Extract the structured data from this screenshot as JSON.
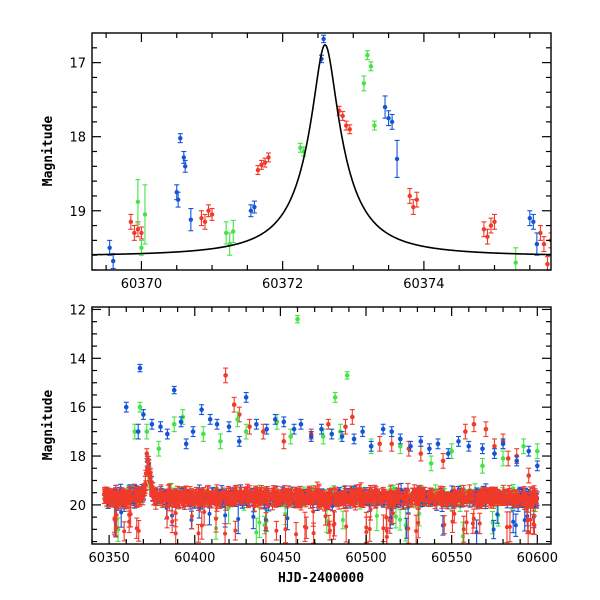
{
  "colors": {
    "red": "#f03a2a",
    "green": "#44e444",
    "blue": "#1454d8",
    "model": "#000000"
  },
  "chart_data": [
    {
      "type": "scatter",
      "xlabel": "",
      "ylabel": "Magnitude",
      "xlim": [
        60369.3,
        60375.8
      ],
      "ylim": [
        19.8,
        16.6
      ],
      "y_inverted": true,
      "xticks_labeled": [
        "60370",
        "60372",
        "60374"
      ],
      "yticks_labeled": [
        "17",
        "18",
        "19"
      ],
      "model_curve": {
        "peak_x": 60372.6,
        "peak_mag": 16.76,
        "baseline_mag": 19.62,
        "timescale_days": 0.8
      },
      "series": [
        {
          "color": "red",
          "points": [
            [
              60369.85,
              19.15,
              0.1
            ],
            [
              60369.9,
              19.3,
              0.1
            ],
            [
              60369.95,
              19.25,
              0.1
            ],
            [
              60370.0,
              19.3,
              0.08
            ],
            [
              60370.85,
              19.1,
              0.1
            ],
            [
              60370.9,
              19.15,
              0.1
            ],
            [
              60370.95,
              19.0,
              0.08
            ],
            [
              60371.0,
              19.05,
              0.08
            ],
            [
              60371.65,
              18.45,
              0.06
            ],
            [
              60371.7,
              18.38,
              0.06
            ],
            [
              60371.75,
              18.35,
              0.06
            ],
            [
              60371.8,
              18.28,
              0.06
            ],
            [
              60372.8,
              17.65,
              0.06
            ],
            [
              60372.85,
              17.72,
              0.06
            ],
            [
              60372.9,
              17.85,
              0.06
            ],
            [
              60372.95,
              17.9,
              0.06
            ],
            [
              60373.8,
              18.8,
              0.1
            ],
            [
              60373.85,
              18.95,
              0.1
            ],
            [
              60373.9,
              18.85,
              0.1
            ],
            [
              60374.85,
              19.25,
              0.1
            ],
            [
              60374.9,
              19.35,
              0.1
            ],
            [
              60374.95,
              19.2,
              0.1
            ],
            [
              60375.0,
              19.15,
              0.1
            ],
            [
              60375.65,
              19.3,
              0.1
            ],
            [
              60375.7,
              19.45,
              0.1
            ],
            [
              60375.75,
              19.72,
              0.1
            ],
            [
              60375.8,
              19.4,
              0.1
            ]
          ]
        },
        {
          "color": "green",
          "points": [
            [
              60369.95,
              18.88,
              0.3
            ],
            [
              60370.0,
              19.5,
              0.1
            ],
            [
              60370.05,
              19.05,
              0.4
            ],
            [
              60371.2,
              19.3,
              0.15
            ],
            [
              60371.25,
              19.45,
              0.15
            ],
            [
              60371.3,
              19.28,
              0.15
            ],
            [
              60372.25,
              18.15,
              0.06
            ],
            [
              60372.3,
              18.2,
              0.06
            ],
            [
              60373.15,
              17.28,
              0.1
            ],
            [
              60373.2,
              16.9,
              0.06
            ],
            [
              60373.25,
              17.05,
              0.06
            ],
            [
              60373.3,
              17.85,
              0.06
            ],
            [
              60375.3,
              19.7,
              0.2
            ]
          ]
        },
        {
          "color": "blue",
          "points": [
            [
              60369.55,
              19.5,
              0.1
            ],
            [
              60369.6,
              19.68,
              0.1
            ],
            [
              60370.5,
              18.75,
              0.1
            ],
            [
              60370.52,
              18.85,
              0.1
            ],
            [
              60370.55,
              18.02,
              0.06
            ],
            [
              60370.6,
              18.28,
              0.08
            ],
            [
              60370.62,
              18.4,
              0.08
            ],
            [
              60370.7,
              19.12,
              0.15
            ],
            [
              60371.55,
              19.0,
              0.08
            ],
            [
              60371.6,
              18.95,
              0.08
            ],
            [
              60372.55,
              16.95,
              0.05
            ],
            [
              60372.58,
              16.68,
              0.05
            ],
            [
              60373.45,
              17.6,
              0.15
            ],
            [
              60373.5,
              17.75,
              0.1
            ],
            [
              60373.55,
              17.8,
              0.1
            ],
            [
              60373.62,
              18.3,
              0.25
            ],
            [
              60375.5,
              19.1,
              0.1
            ],
            [
              60375.55,
              19.15,
              0.1
            ],
            [
              60375.6,
              19.45,
              0.15
            ]
          ]
        }
      ]
    },
    {
      "type": "scatter",
      "xlabel": "HJD-2400000",
      "ylabel": "Magnitude",
      "xlim": [
        60340,
        60608
      ],
      "ylim": [
        21.6,
        11.9
      ],
      "y_inverted": true,
      "xticks_labeled": [
        "60350",
        "60400",
        "60450",
        "60500",
        "60550",
        "60600"
      ],
      "yticks_labeled": [
        "12",
        "14",
        "16",
        "18",
        "20"
      ],
      "baseline_mag": 19.7,
      "series_bright_points": [
        {
          "color": "red",
          "points": [
            [
              60372,
              17.9,
              0.2
            ],
            [
              60418,
              14.7,
              0.3
            ],
            [
              60423,
              15.9,
              0.3
            ],
            [
              60426,
              16.3,
              0.3
            ],
            [
              60432,
              16.8,
              0.3
            ],
            [
              60440,
              17.0,
              0.3
            ],
            [
              60452,
              17.4,
              0.3
            ],
            [
              60468,
              17.1,
              0.2
            ],
            [
              60478,
              16.7,
              0.2
            ],
            [
              60488,
              16.8,
              0.3
            ],
            [
              60492,
              16.4,
              0.3
            ],
            [
              60508,
              17.5,
              0.3
            ],
            [
              60515,
              17.5,
              0.3
            ],
            [
              60525,
              17.7,
              0.3
            ],
            [
              60532,
              17.9,
              0.3
            ],
            [
              60545,
              18.2,
              0.3
            ],
            [
              60558,
              17.0,
              0.3
            ],
            [
              60563,
              16.7,
              0.3
            ],
            [
              60570,
              16.9,
              0.3
            ],
            [
              60575,
              17.6,
              0.3
            ],
            [
              60580,
              17.4,
              0.3
            ],
            [
              60583,
              18.1,
              0.3
            ],
            [
              60588,
              18.0,
              0.3
            ],
            [
              60595,
              18.8,
              0.3
            ]
          ]
        },
        {
          "color": "green",
          "points": [
            [
              60365,
              17.0,
              0.3
            ],
            [
              60368,
              16.0,
              0.2
            ],
            [
              60372,
              17.0,
              0.3
            ],
            [
              60379,
              17.7,
              0.3
            ],
            [
              60388,
              16.7,
              0.3
            ],
            [
              60393,
              16.4,
              0.3
            ],
            [
              60405,
              17.1,
              0.3
            ],
            [
              60415,
              17.4,
              0.3
            ],
            [
              60425,
              16.5,
              0.3
            ],
            [
              60430,
              17.0,
              0.3
            ],
            [
              60448,
              16.6,
              0.3
            ],
            [
              60456,
              17.2,
              0.3
            ],
            [
              60460,
              12.4,
              0.15
            ],
            [
              60475,
              17.2,
              0.3
            ],
            [
              60482,
              15.6,
              0.2
            ],
            [
              60485,
              17.0,
              0.3
            ],
            [
              60489,
              14.7,
              0.15
            ],
            [
              60503,
              17.6,
              0.3
            ],
            [
              60520,
              17.6,
              0.3
            ],
            [
              60538,
              18.3,
              0.3
            ],
            [
              60550,
              17.8,
              0.3
            ],
            [
              60568,
              18.4,
              0.3
            ],
            [
              60580,
              18.1,
              0.3
            ],
            [
              60592,
              17.6,
              0.3
            ],
            [
              60600,
              17.8,
              0.3
            ]
          ]
        },
        {
          "color": "blue",
          "points": [
            [
              60360,
              16.0,
              0.2
            ],
            [
              60367,
              17.0,
              0.3
            ],
            [
              60368,
              14.4,
              0.15
            ],
            [
              60370,
              16.3,
              0.2
            ],
            [
              60375,
              16.7,
              0.2
            ],
            [
              60380,
              16.8,
              0.2
            ],
            [
              60384,
              17.1,
              0.2
            ],
            [
              60388,
              15.3,
              0.15
            ],
            [
              60392,
              16.6,
              0.2
            ],
            [
              60395,
              17.5,
              0.2
            ],
            [
              60399,
              17.0,
              0.2
            ],
            [
              60404,
              16.1,
              0.2
            ],
            [
              60409,
              16.5,
              0.2
            ],
            [
              60413,
              16.7,
              0.2
            ],
            [
              60420,
              16.8,
              0.2
            ],
            [
              60426,
              17.4,
              0.2
            ],
            [
              60430,
              15.6,
              0.2
            ],
            [
              60436,
              16.7,
              0.2
            ],
            [
              60442,
              16.9,
              0.2
            ],
            [
              60447,
              16.5,
              0.2
            ],
            [
              60452,
              16.6,
              0.2
            ],
            [
              60458,
              16.9,
              0.2
            ],
            [
              60462,
              16.7,
              0.2
            ],
            [
              60468,
              17.2,
              0.2
            ],
            [
              60474,
              16.9,
              0.2
            ],
            [
              60480,
              17.1,
              0.2
            ],
            [
              60486,
              17.2,
              0.2
            ],
            [
              60493,
              17.3,
              0.2
            ],
            [
              60498,
              17.0,
              0.2
            ],
            [
              60503,
              17.6,
              0.2
            ],
            [
              60510,
              16.9,
              0.2
            ],
            [
              60515,
              17.0,
              0.2
            ],
            [
              60520,
              17.3,
              0.2
            ],
            [
              60526,
              17.6,
              0.2
            ],
            [
              60532,
              17.4,
              0.2
            ],
            [
              60537,
              17.7,
              0.2
            ],
            [
              60542,
              17.5,
              0.2
            ],
            [
              60548,
              17.9,
              0.2
            ],
            [
              60554,
              17.4,
              0.2
            ],
            [
              60560,
              17.6,
              0.2
            ],
            [
              60568,
              17.7,
              0.2
            ],
            [
              60575,
              17.9,
              0.2
            ],
            [
              60580,
              17.5,
              0.2
            ],
            [
              60588,
              18.2,
              0.2
            ],
            [
              60595,
              17.8,
              0.2
            ],
            [
              60600,
              18.4,
              0.2
            ]
          ]
        }
      ]
    }
  ]
}
